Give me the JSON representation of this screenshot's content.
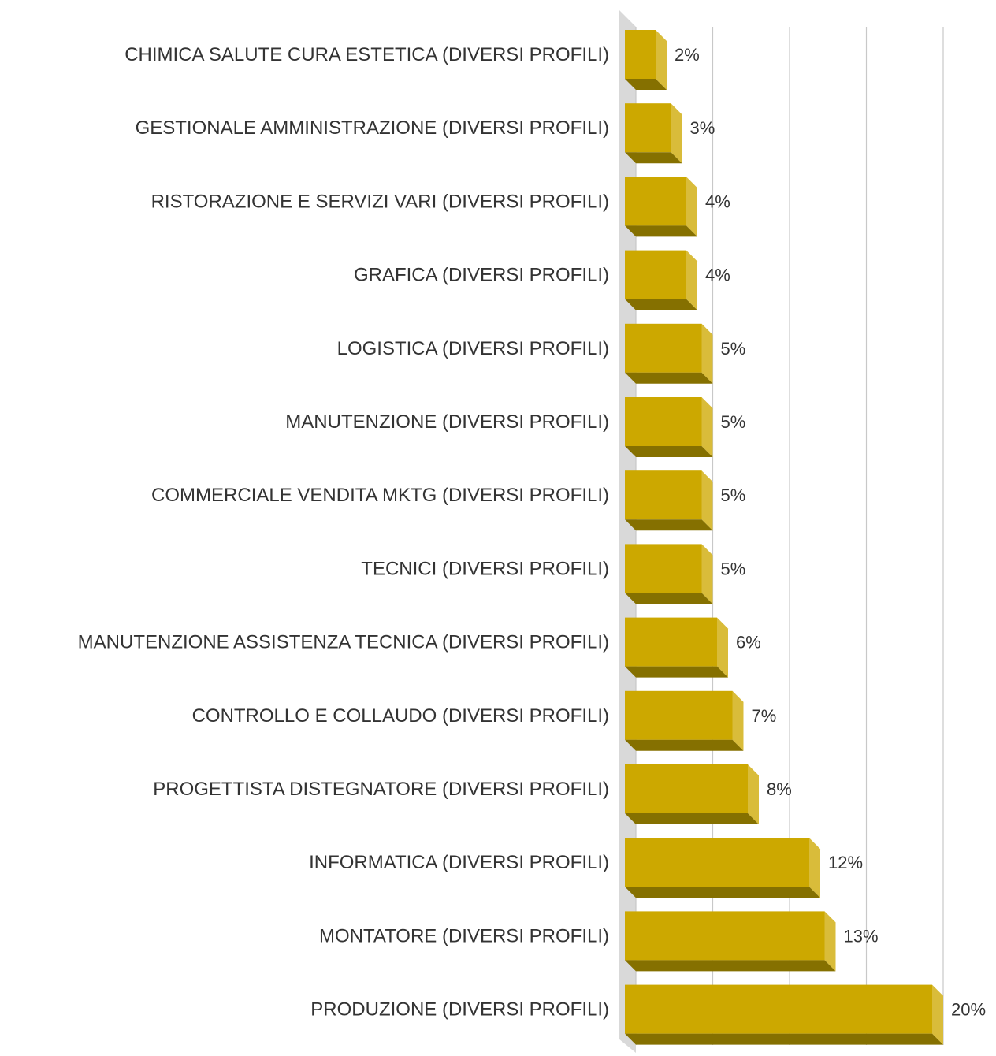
{
  "chart_data": {
    "type": "bar",
    "orientation": "horizontal",
    "three_d": true,
    "categories": [
      "CHIMICA SALUTE CURA ESTETICA (DIVERSI PROFILI)",
      "GESTIONALE AMMINISTRAZIONE (DIVERSI PROFILI)",
      "RISTORAZIONE E SERVIZI VARI (DIVERSI PROFILI)",
      "GRAFICA (DIVERSI PROFILI)",
      "LOGISTICA (DIVERSI PROFILI)",
      "MANUTENZIONE (DIVERSI PROFILI)",
      "COMMERCIALE VENDITA MKTG (DIVERSI PROFILI)",
      "TECNICI (DIVERSI PROFILI)",
      "MANUTENZIONE ASSISTENZA TECNICA (DIVERSI PROFILI)",
      "CONTROLLO E COLLAUDO (DIVERSI PROFILI)",
      "PROGETTISTA DISTEGNATORE (DIVERSI PROFILI)",
      "INFORMATICA (DIVERSI PROFILI)",
      "MONTATORE (DIVERSI PROFILI)",
      "PRODUZIONE (DIVERSI PROFILI)"
    ],
    "values": [
      2,
      3,
      4,
      4,
      5,
      5,
      5,
      5,
      6,
      7,
      8,
      12,
      13,
      20
    ],
    "value_labels": [
      "2%",
      "3%",
      "4%",
      "4%",
      "5%",
      "5%",
      "5%",
      "5%",
      "6%",
      "7%",
      "8%",
      "12%",
      "13%",
      "20%"
    ],
    "unit": "%",
    "xlim": [
      0,
      20
    ],
    "grid": true,
    "legend": "none",
    "title": "",
    "xlabel": "",
    "ylabel": "",
    "colors": {
      "bar_front": "#cca800",
      "bar_top": "#e6c419",
      "bar_bottom": "#857000",
      "bar_right": "#d9bc3a",
      "gridline": "#c8c8c8",
      "wall": "#d9d9d9",
      "text": "#333333"
    }
  }
}
